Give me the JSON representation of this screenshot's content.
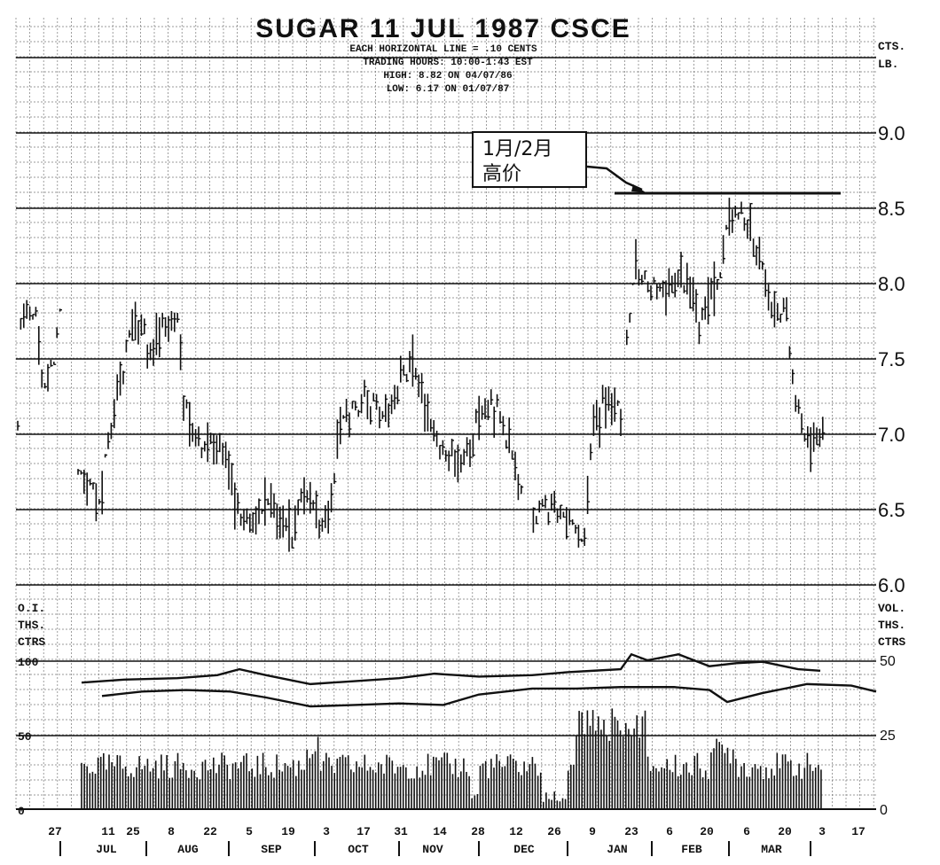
{
  "chart_data": {
    "type": "bar",
    "subtype": "daily high-low-close price bars with open interest and volume panels",
    "title": "SUGAR 11 JUL 1987 CSCE",
    "subtitle_lines": [
      "EACH HORIZONTAL LINE = .10 CENTS",
      "TRADING HOURS: 10:00-1:43 EST",
      "HIGH: 8.82 ON 04/07/86",
      "LOW: 6.17 ON 01/07/87"
    ],
    "price_axis": {
      "units_label": [
        "CTS.",
        "LB."
      ],
      "ticks": [
        6.0,
        6.5,
        7.0,
        7.5,
        8.0,
        8.5,
        9.0
      ],
      "tick_labels": [
        "6.0",
        "6.5",
        "7.0",
        "7.5",
        "8.0",
        "8.5",
        "9.0"
      ],
      "ylim": [
        6.0,
        9.4
      ]
    },
    "oi_axis": {
      "label": [
        "O.I.",
        "THS.",
        "CTRS"
      ],
      "ticks": [
        0,
        50,
        100
      ],
      "tick_labels": [
        "0",
        "50",
        "100"
      ]
    },
    "vol_axis": {
      "label": [
        "VOL.",
        "THS.",
        "CTRS"
      ],
      "ticks": [
        0,
        25,
        50
      ],
      "tick_labels": [
        "0",
        "25",
        "50"
      ]
    },
    "x_axis": {
      "day_labels": [
        "27",
        "11",
        "25",
        "8",
        "22",
        "5",
        "19",
        "3",
        "17",
        "31",
        "14",
        "28",
        "12",
        "26",
        "9",
        "23",
        "6",
        "20",
        "6",
        "20",
        "3",
        "17"
      ],
      "month_labels": [
        "JUL",
        "AUG",
        "SEP",
        "OCT",
        "NOV",
        "DEC",
        "JAN",
        "FEB",
        "MAR"
      ]
    },
    "annotation": {
      "text_line1": "1月/2月",
      "text_line2": "高价",
      "level": 8.6
    },
    "grid": true
  }
}
